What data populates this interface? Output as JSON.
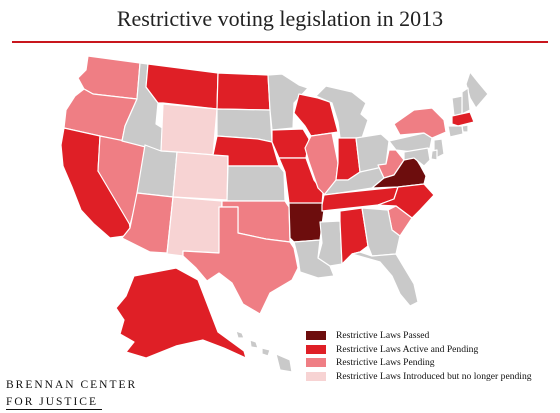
{
  "title": "Restrictive voting legislation in 2013",
  "colors": {
    "passed": "#6d0d0d",
    "active": "#df1f26",
    "pending": "#ef7e84",
    "nolonger": "#f7d3d3",
    "none": "#c9c9c9",
    "rule": "#c8161d"
  },
  "legend": {
    "passed": "Restrictive Laws Passed",
    "active": "Restrictive Laws Active and Pending",
    "pending": "Restrictive Laws Pending",
    "nolonger": "Restrictive Laws Introduced but no longer pending"
  },
  "brand": {
    "line1": "BRENNAN CENTER",
    "line2": "FOR JUSTICE"
  },
  "states": {
    "WA": "pending",
    "OR": "pending",
    "CA": "active",
    "NV": "pending",
    "ID": "none",
    "MT": "active",
    "WY": "nolonger",
    "UT": "none",
    "AZ": "pending",
    "CO": "nolonger",
    "NM": "nolonger",
    "ND": "active",
    "SD": "none",
    "NE": "active",
    "KS": "none",
    "OK": "pending",
    "TX": "pending",
    "MN": "none",
    "IA": "active",
    "MO": "active",
    "AR": "passed",
    "LA": "none",
    "WI": "active",
    "IL": "pending",
    "MS": "none",
    "MI": "none",
    "IN": "active",
    "KY": "none",
    "TN": "active",
    "AL": "active",
    "OH": "none",
    "WV": "pending",
    "VA": "passed",
    "NC": "active",
    "SC": "pending",
    "GA": "none",
    "FL": "none",
    "PA": "none",
    "NY": "pending",
    "ME": "none",
    "NH": "none",
    "VT": "none",
    "MA": "active",
    "NJ": "none",
    "MD": "none",
    "DE": "none",
    "CT": "none",
    "RI": "none",
    "AK": "active",
    "HI": "none"
  }
}
